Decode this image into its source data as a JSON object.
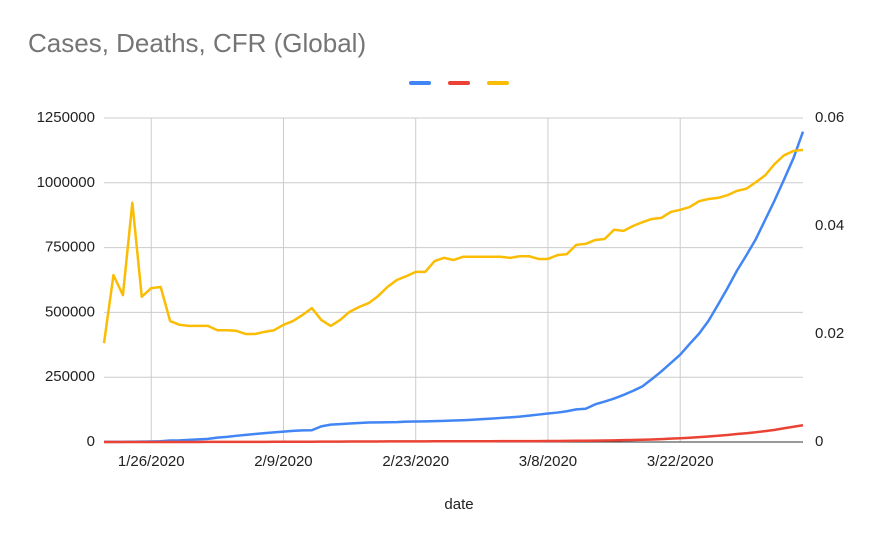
{
  "chart_data": {
    "type": "line",
    "title": "Cases, Deaths, CFR (Global)",
    "x_label": "date",
    "categories": [
      null,
      null,
      null,
      null,
      null,
      "1/26/2020",
      null,
      null,
      null,
      null,
      null,
      null,
      null,
      null,
      null,
      null,
      null,
      null,
      null,
      "2/9/2020",
      null,
      null,
      null,
      null,
      null,
      null,
      null,
      null,
      null,
      null,
      null,
      null,
      null,
      "2/23/2020",
      null,
      null,
      null,
      null,
      null,
      null,
      null,
      null,
      null,
      null,
      null,
      null,
      null,
      "3/8/2020",
      null,
      null,
      null,
      null,
      null,
      null,
      null,
      null,
      null,
      null,
      null,
      null,
      null,
      "3/22/2020",
      null,
      null,
      null,
      null,
      null,
      null,
      null,
      null,
      null,
      null,
      null,
      null,
      null
    ],
    "series": [
      {
        "color": "#4285f4",
        "values": [
          300,
          555,
          654,
          941,
          1434,
          2118,
          2927,
          5578,
          6166,
          8234,
          9927,
          12038,
          16787,
          19881,
          23892,
          27635,
          30794,
          34391,
          37120,
          40150,
          42762,
          44802,
          45221,
          60368,
          66885,
          69030,
          71224,
          73258,
          75136,
          75639,
          76197,
          76819,
          78572,
          78958,
          79561,
          80406,
          81388,
          82746,
          84112,
          86011,
          88369,
          90306,
          92840,
          95120,
          97886,
          101801,
          105847,
          109821,
          113590,
          118620,
          125875,
          128352,
          145205,
          156101,
          167454,
          181574,
          197102,
          214821,
          242570,
          272208,
          304507,
          336953,
          378235,
          418045,
          467653,
          529591,
          593291,
          660706,
          720117,
          782365,
          857487,
          932605,
          1013157,
          1095917,
          1197405
        ]
      },
      {
        "color": "#ea4335",
        "values": [
          6,
          17,
          18,
          26,
          42,
          56,
          82,
          131,
          133,
          171,
          213,
          259,
          362,
          426,
          492,
          564,
          634,
          719,
          806,
          906,
          1013,
          1113,
          1118,
          1371,
          1523,
          1666,
          1770,
          1868,
          2007,
          2122,
          2247,
          2251,
          2458,
          2469,
          2629,
          2708,
          2770,
          2814,
          2872,
          2941,
          2996,
          3085,
          3160,
          3254,
          3348,
          3460,
          3558,
          3803,
          3996,
          4262,
          4615,
          4720,
          5404,
          5819,
          6440,
          7126,
          7905,
          8733,
          9867,
          11299,
          12973,
          14651,
          16505,
          18625,
          21181,
          23970,
          27198,
          30652,
          33925,
          37582,
          42107,
          46809,
          52983,
          58787,
          64606
        ]
      },
      {
        "color": "#fbbc04",
        "axis": "y2",
        "values": [
          0.0183,
          0.0309,
          0.0272,
          0.0443,
          0.0269,
          0.0285,
          0.0287,
          0.0224,
          0.0217,
          0.0215,
          0.0215,
          0.0215,
          0.0207,
          0.0207,
          0.0206,
          0.02,
          0.02,
          0.0204,
          0.0207,
          0.0217,
          0.0224,
          0.0235,
          0.0248,
          0.0226,
          0.0215,
          0.0226,
          0.0241,
          0.025,
          0.0257,
          0.027,
          0.0287,
          0.03,
          0.0307,
          0.0315,
          0.0315,
          0.0335,
          0.0341,
          0.0337,
          0.0343,
          0.0343,
          0.0343,
          0.0343,
          0.0343,
          0.0341,
          0.0344,
          0.0344,
          0.0339,
          0.0339,
          0.0346,
          0.0348,
          0.0365,
          0.0367,
          0.0374,
          0.0376,
          0.0393,
          0.0391,
          0.04,
          0.0407,
          0.0413,
          0.0415,
          0.0426,
          0.043,
          0.0435,
          0.0446,
          0.045,
          0.0452,
          0.0457,
          0.0465,
          0.0469,
          0.0481,
          0.0494,
          0.0515,
          0.0531,
          0.0539,
          0.0541
        ]
      }
    ],
    "ylim": [
      0,
      1250000
    ],
    "yticks": [
      0,
      250000,
      500000,
      750000,
      1000000,
      1250000
    ],
    "y2lim": [
      0,
      0.06
    ],
    "y2ticks": [
      0,
      0.02,
      0.04,
      0.06
    ],
    "grid": true,
    "legend": "top"
  }
}
